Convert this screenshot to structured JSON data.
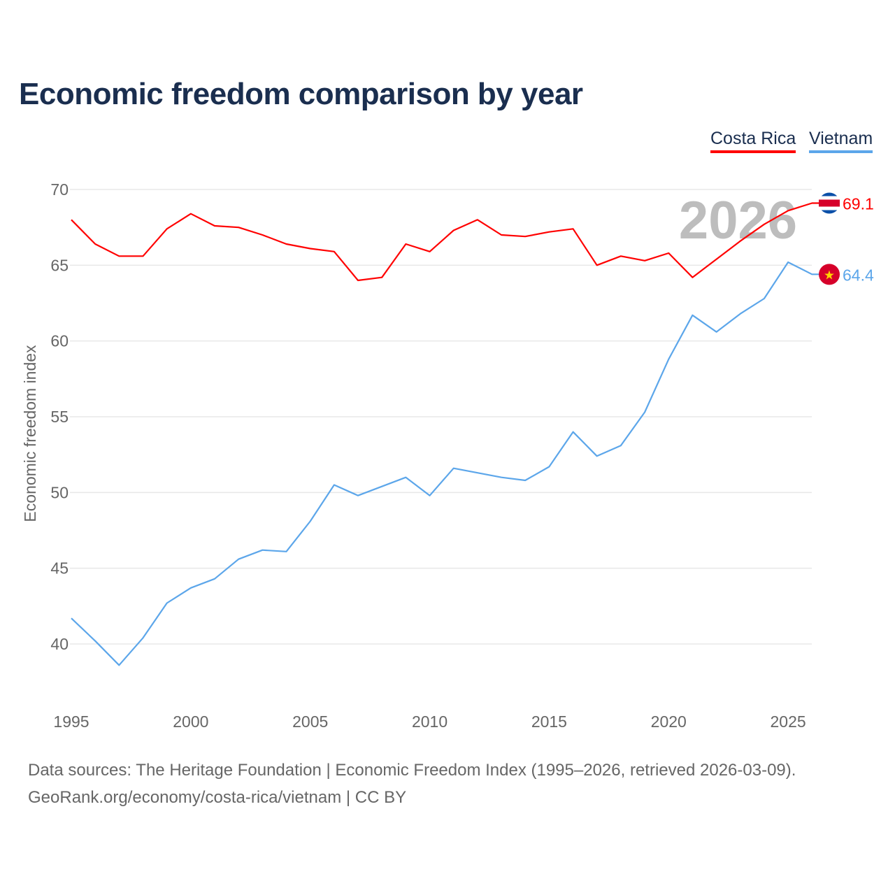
{
  "title": "Economic freedom comparison by year",
  "legend": [
    "Costa Rica",
    "Vietnam"
  ],
  "chart_data": {
    "type": "line",
    "title": "Economic freedom comparison by year",
    "xlabel": "",
    "ylabel": "Economic freedom index",
    "ylim": [
      33,
      70
    ],
    "xlim": [
      1995,
      2026
    ],
    "yticks": [
      40,
      45,
      50,
      55,
      60,
      65,
      70
    ],
    "xticks": [
      1995,
      2000,
      2005,
      2010,
      2015,
      2020,
      2025
    ],
    "grid": true,
    "legend_position": "top-right",
    "year_watermark": "2026",
    "x": [
      1995,
      1996,
      1997,
      1998,
      1999,
      2000,
      2001,
      2002,
      2003,
      2004,
      2005,
      2006,
      2007,
      2008,
      2009,
      2010,
      2011,
      2012,
      2013,
      2014,
      2015,
      2016,
      2017,
      2018,
      2019,
      2020,
      2021,
      2022,
      2023,
      2024,
      2025,
      2026
    ],
    "series": [
      {
        "name": "Costa Rica",
        "color": "#ff0000",
        "end_label": "69.1",
        "values": [
          68.0,
          66.4,
          65.6,
          65.6,
          67.4,
          68.4,
          67.6,
          67.5,
          67.0,
          66.4,
          66.1,
          65.9,
          64.0,
          64.2,
          66.4,
          65.9,
          67.3,
          68.0,
          67.0,
          66.9,
          67.2,
          67.4,
          65.0,
          65.6,
          65.3,
          65.8,
          64.2,
          65.4,
          66.6,
          67.7,
          68.6,
          69.1
        ]
      },
      {
        "name": "Vietnam",
        "color": "#5ca6ea",
        "end_label": "64.4",
        "values": [
          41.7,
          40.2,
          38.6,
          40.4,
          42.7,
          43.7,
          44.3,
          45.6,
          46.2,
          46.1,
          48.1,
          50.5,
          49.8,
          50.4,
          51.0,
          49.8,
          51.6,
          51.3,
          51.0,
          50.8,
          51.7,
          54.0,
          52.4,
          53.1,
          55.3,
          58.8,
          61.7,
          60.6,
          61.8,
          62.8,
          65.2,
          64.4
        ]
      }
    ]
  },
  "footer": {
    "line1": "Data sources: The Heritage Foundation | Economic Freedom Index (1995–2026, retrieved 2026-03-09).",
    "line2": "GeoRank.org/economy/costa-rica/vietnam | CC BY"
  }
}
